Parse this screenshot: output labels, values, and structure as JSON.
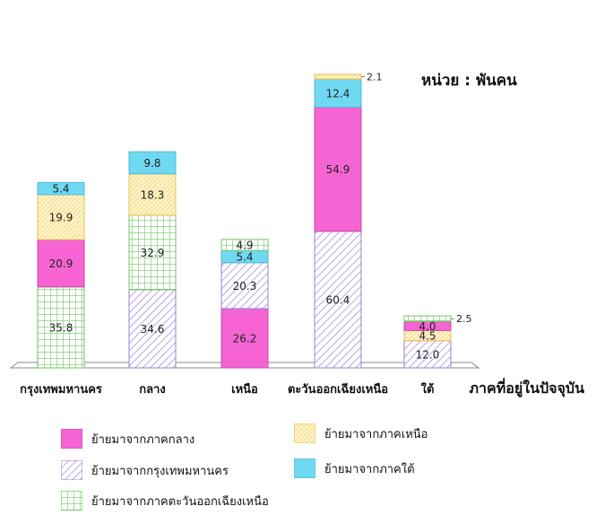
{
  "chart_data": {
    "type": "bar",
    "stacked": true,
    "unit_label": "หน่วย : พันคน",
    "xlabel": "ภาคที่อยู่ในปัจจุบัน",
    "categories": [
      "กรุงเทพมหานคร",
      "กลาง",
      "เหนือ",
      "ตะวันออกเฉียงเหนือ",
      "ใต้"
    ],
    "series": [
      {
        "name": "ย้ายมาจากภาคกลาง",
        "pattern": "solid",
        "color": "#f564d2",
        "values": [
          20.9,
          0,
          26.2,
          54.9,
          4.0
        ]
      },
      {
        "name": "ย้ายมาจากกรุงเทพมหานคร",
        "pattern": "diagonal",
        "color": "#9b7fd6",
        "values": [
          0,
          34.6,
          20.3,
          60.4,
          12.0
        ]
      },
      {
        "name": "ย้ายมาจากภาคตะวันออกเฉียงเหนือ",
        "pattern": "grid",
        "color": "#7fc97f",
        "values": [
          35.8,
          32.9,
          4.9,
          0,
          2.5
        ]
      },
      {
        "name": "ย้ายมาจากภาคเหนือ",
        "pattern": "dots",
        "color": "#e8c14a",
        "values": [
          19.9,
          18.3,
          0,
          2.1,
          4.5
        ]
      },
      {
        "name": "ย้ายมาจากภาคใต้",
        "pattern": "solid",
        "color": "#6fd9f2",
        "values": [
          5.4,
          9.8,
          5.4,
          12.4,
          0
        ]
      }
    ],
    "stack_order": [
      [
        "grid",
        "solid_central",
        "dots",
        "south"
      ],
      [
        "diagonal",
        "grid",
        "dots",
        "south"
      ],
      [
        "solid_central",
        "diagonal",
        "south",
        "grid"
      ],
      [
        "diagonal",
        "solid_central",
        "south",
        "dots"
      ],
      [
        "diagonal",
        "dots",
        "solid_central",
        "grid"
      ]
    ]
  },
  "legend": {
    "central": "ย้ายมาจากภาคกลาง",
    "bangkok": "ย้ายมาจากกรุงเทพมหานคร",
    "northeast": "ย้ายมาจากภาคตะวันออกเฉียงเหนือ",
    "north": "ย้ายมาจากภาคเหนือ",
    "south": "ย้ายมาจากภาคใต้"
  }
}
